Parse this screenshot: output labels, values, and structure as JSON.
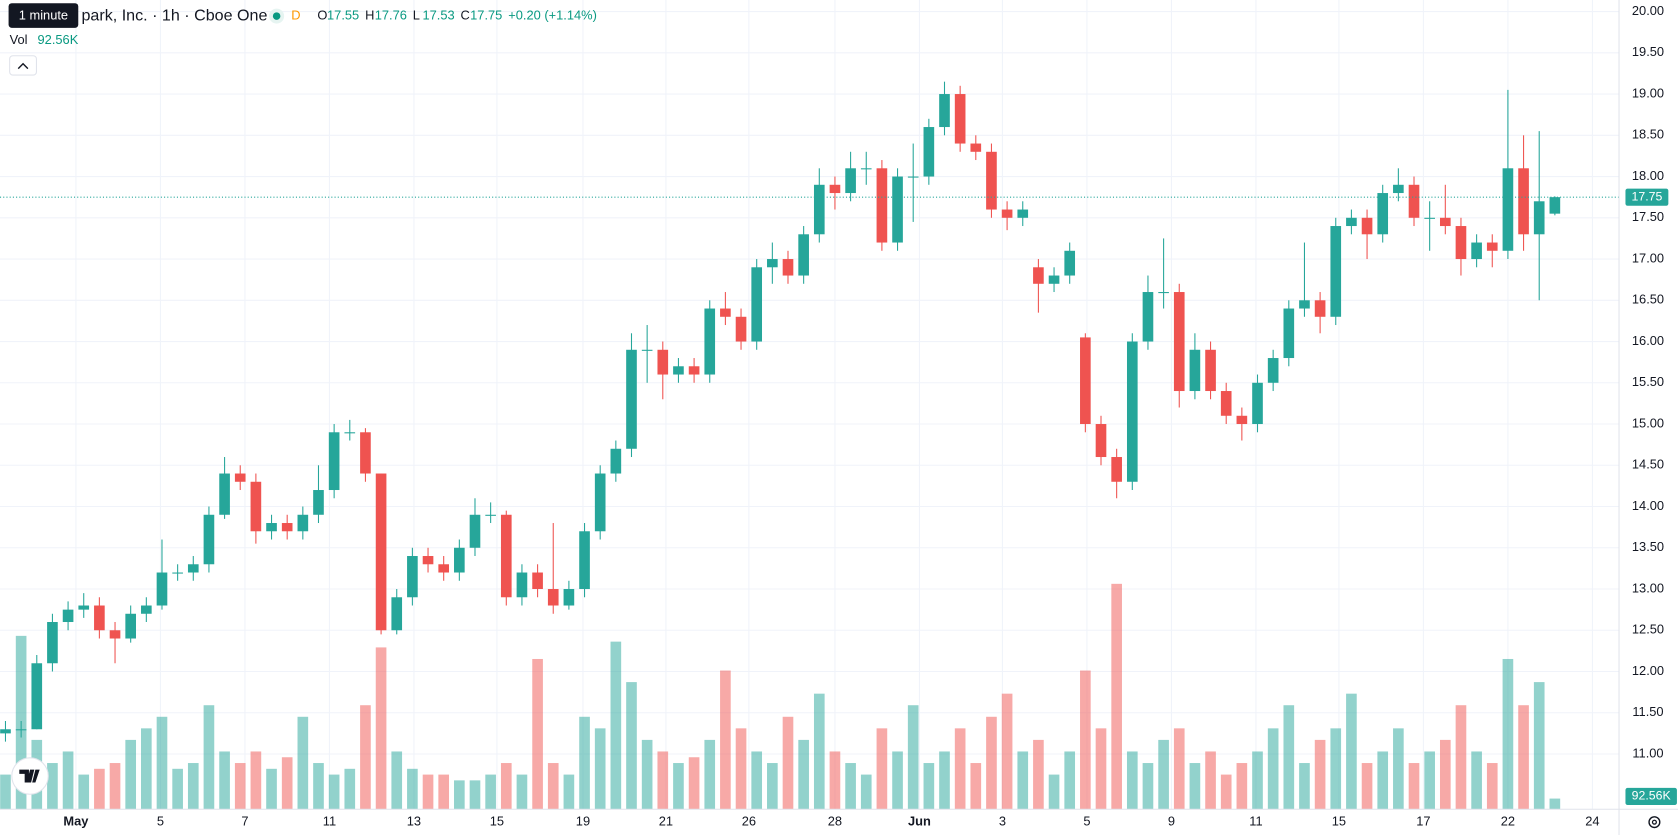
{
  "chart_data": {
    "type": "candlestick",
    "tooltip": "1 minute",
    "title": "park, Inc. · 1h · Cboe One",
    "interval_badge": "D",
    "ohlc_keys": [
      "O",
      "H",
      "L",
      "C"
    ],
    "change_label": "+0.20 (+1.14%)",
    "volume_title": "Vol",
    "volume_label": "92.56K",
    "up_color": "#26a69a",
    "down_color": "#ef5350",
    "grid": true,
    "xlim": [
      -0.35,
      103.1
    ],
    "xticks": [
      {
        "value": 4.5,
        "label": "May"
      },
      {
        "value": 9.9,
        "label": "5"
      },
      {
        "value": 15.3,
        "label": "7"
      },
      {
        "value": 20.7,
        "label": "11"
      },
      {
        "value": 26.1,
        "label": "13"
      },
      {
        "value": 31.4,
        "label": "15"
      },
      {
        "value": 36.9,
        "label": "19"
      },
      {
        "value": 42.2,
        "label": "21"
      },
      {
        "value": 47.5,
        "label": "26"
      },
      {
        "value": 53.0,
        "label": "28"
      },
      {
        "value": 58.4,
        "label": "Jun"
      },
      {
        "value": 63.7,
        "label": "3"
      },
      {
        "value": 69.1,
        "label": "5"
      },
      {
        "value": 74.5,
        "label": "9"
      },
      {
        "value": 79.9,
        "label": "11"
      },
      {
        "value": 85.2,
        "label": "15"
      },
      {
        "value": 90.6,
        "label": "17"
      },
      {
        "value": 96.0,
        "label": "22"
      },
      {
        "value": 101.4,
        "label": "24"
      }
    ],
    "ylim": [
      10.33,
      20.14
    ],
    "yticks": [
      {
        "value": 11,
        "label": "11.00"
      },
      {
        "value": 11.5,
        "label": "11.50"
      },
      {
        "value": 12,
        "label": "12.00"
      },
      {
        "value": 12.5,
        "label": "12.50"
      },
      {
        "value": 13,
        "label": "13.00"
      },
      {
        "value": 13.5,
        "label": "13.50"
      },
      {
        "value": 14,
        "label": "14.00"
      },
      {
        "value": 14.5,
        "label": "14.50"
      },
      {
        "value": 15,
        "label": "15.00"
      },
      {
        "value": 15.5,
        "label": "15.50"
      },
      {
        "value": 16,
        "label": "16.00"
      },
      {
        "value": 16.5,
        "label": "16.50"
      },
      {
        "value": 17,
        "label": "17.00"
      },
      {
        "value": 17.5,
        "label": "17.50"
      },
      {
        "value": 18,
        "label": "18.00"
      },
      {
        "value": 18.5,
        "label": "18.50"
      },
      {
        "value": 19,
        "label": "19.00"
      },
      {
        "value": 19.5,
        "label": "19.50"
      },
      {
        "value": 20,
        "label": "20.00"
      }
    ],
    "volume_lim": [
      0,
      7000000
    ],
    "open": [
      11.25,
      11.3,
      11.3,
      12.1,
      12.6,
      12.75,
      12.8,
      12.5,
      12.4,
      12.7,
      12.8,
      13.2,
      13.2,
      13.3,
      13.9,
      14.4,
      14.3,
      13.7,
      13.8,
      13.7,
      13.9,
      14.2,
      14.9,
      14.9,
      14.4,
      12.5,
      12.9,
      13.4,
      13.3,
      13.2,
      13.5,
      13.9,
      13.9,
      12.9,
      13.2,
      13.0,
      12.8,
      13.0,
      13.7,
      14.4,
      14.7,
      15.9,
      15.9,
      15.6,
      15.7,
      15.6,
      16.4,
      16.3,
      16.0,
      16.9,
      17.0,
      16.8,
      17.3,
      17.9,
      17.8,
      18.1,
      18.1,
      17.2,
      18.0,
      18.0,
      18.6,
      19.0,
      18.4,
      18.3,
      17.6,
      17.5,
      16.9,
      16.7,
      16.8,
      16.05,
      15.0,
      14.6,
      14.3,
      16.0,
      16.6,
      16.6,
      15.4,
      15.9,
      15.4,
      15.1,
      15.0,
      15.5,
      15.8,
      16.4,
      16.5,
      16.3,
      17.4,
      17.5,
      17.3,
      17.8,
      17.9,
      17.5,
      17.5,
      17.4,
      17.0,
      17.2,
      17.1,
      18.1,
      17.3,
      17.55
    ],
    "high": [
      11.4,
      11.4,
      12.2,
      12.7,
      12.85,
      12.95,
      12.9,
      12.6,
      12.8,
      12.9,
      13.6,
      13.3,
      13.4,
      14.0,
      14.6,
      14.5,
      14.4,
      13.9,
      13.9,
      14.0,
      14.5,
      15.0,
      15.05,
      14.95,
      14.4,
      13.0,
      13.5,
      13.5,
      13.4,
      13.6,
      14.1,
      14.05,
      13.95,
      13.3,
      13.3,
      13.8,
      13.1,
      13.8,
      14.5,
      14.8,
      16.1,
      16.2,
      16.0,
      15.8,
      15.8,
      16.5,
      16.6,
      16.4,
      17.0,
      17.2,
      17.1,
      17.4,
      18.1,
      18.0,
      18.3,
      18.3,
      18.2,
      18.1,
      18.4,
      18.7,
      19.15,
      19.1,
      18.5,
      18.4,
      17.7,
      17.7,
      17.0,
      16.9,
      17.2,
      16.1,
      15.1,
      14.7,
      16.1,
      16.8,
      17.25,
      16.7,
      16.1,
      16.0,
      15.5,
      15.2,
      15.6,
      15.9,
      16.5,
      17.2,
      16.6,
      17.5,
      17.6,
      17.6,
      17.9,
      18.1,
      18.0,
      17.7,
      17.9,
      17.5,
      17.3,
      17.3,
      19.05,
      18.5,
      18.55,
      17.76
    ],
    "low": [
      11.15,
      11.2,
      11.3,
      12.0,
      12.5,
      12.65,
      12.4,
      12.1,
      12.35,
      12.6,
      12.75,
      13.1,
      13.1,
      13.2,
      13.85,
      14.2,
      13.55,
      13.6,
      13.6,
      13.6,
      13.8,
      14.1,
      14.8,
      14.3,
      12.45,
      12.45,
      12.8,
      13.2,
      13.1,
      13.1,
      13.4,
      13.8,
      12.8,
      12.8,
      12.9,
      12.7,
      12.75,
      12.9,
      13.6,
      14.3,
      14.6,
      15.5,
      15.3,
      15.5,
      15.5,
      15.5,
      16.2,
      15.9,
      15.9,
      16.7,
      16.7,
      16.7,
      17.2,
      17.6,
      17.7,
      17.9,
      17.1,
      17.1,
      17.45,
      17.9,
      18.5,
      18.3,
      18.2,
      17.5,
      17.35,
      17.4,
      16.35,
      16.6,
      16.7,
      14.9,
      14.5,
      14.1,
      14.2,
      15.9,
      16.4,
      15.2,
      15.3,
      15.3,
      15.0,
      14.8,
      14.9,
      15.4,
      15.7,
      16.3,
      16.1,
      16.2,
      17.3,
      17.0,
      17.2,
      17.7,
      17.4,
      17.1,
      17.3,
      16.8,
      16.9,
      16.9,
      17.0,
      17.1,
      16.5,
      17.53
    ],
    "close": [
      11.3,
      11.3,
      12.1,
      12.6,
      12.75,
      12.8,
      12.5,
      12.4,
      12.7,
      12.8,
      13.2,
      13.2,
      13.3,
      13.9,
      14.4,
      14.3,
      13.7,
      13.8,
      13.7,
      13.9,
      14.2,
      14.9,
      14.9,
      14.4,
      12.5,
      12.9,
      13.4,
      13.3,
      13.2,
      13.5,
      13.9,
      13.9,
      12.9,
      13.2,
      13.0,
      12.8,
      13.0,
      13.7,
      14.4,
      14.7,
      15.9,
      15.9,
      15.6,
      15.7,
      15.6,
      16.4,
      16.3,
      16.0,
      16.9,
      17.0,
      16.8,
      17.3,
      17.9,
      17.8,
      18.1,
      18.1,
      17.2,
      18.0,
      18.0,
      18.6,
      19.0,
      18.4,
      18.3,
      17.6,
      17.5,
      17.6,
      16.7,
      16.8,
      17.1,
      15.0,
      14.6,
      14.3,
      16.0,
      16.6,
      16.6,
      15.4,
      15.9,
      15.4,
      15.1,
      15.0,
      15.5,
      15.8,
      16.4,
      16.5,
      16.3,
      17.4,
      17.5,
      17.3,
      17.8,
      17.9,
      17.5,
      17.5,
      17.4,
      17.0,
      17.2,
      17.1,
      18.1,
      17.3,
      17.7,
      17.75
    ],
    "volume": [
      300000,
      1500000,
      600000,
      400000,
      500000,
      300000,
      350000,
      400000,
      600000,
      700000,
      800000,
      350000,
      400000,
      900000,
      500000,
      400000,
      500000,
      350000,
      450000,
      800000,
      400000,
      300000,
      350000,
      900000,
      1400000,
      500000,
      350000,
      300000,
      300000,
      250000,
      250000,
      300000,
      400000,
      300000,
      1300000,
      400000,
      300000,
      800000,
      700000,
      1450000,
      1100000,
      600000,
      500000,
      400000,
      450000,
      600000,
      1200000,
      700000,
      500000,
      400000,
      800000,
      600000,
      1000000,
      500000,
      400000,
      300000,
      700000,
      500000,
      900000,
      400000,
      500000,
      700000,
      400000,
      800000,
      1000000,
      500000,
      600000,
      300000,
      500000,
      1200000,
      700000,
      1950000,
      500000,
      400000,
      600000,
      700000,
      400000,
      500000,
      300000,
      400000,
      500000,
      700000,
      900000,
      400000,
      600000,
      700000,
      1000000,
      400000,
      500000,
      700000,
      400000,
      500000,
      600000,
      900000,
      500000,
      400000,
      1300000,
      900000,
      1100000,
      92560
    ]
  }
}
